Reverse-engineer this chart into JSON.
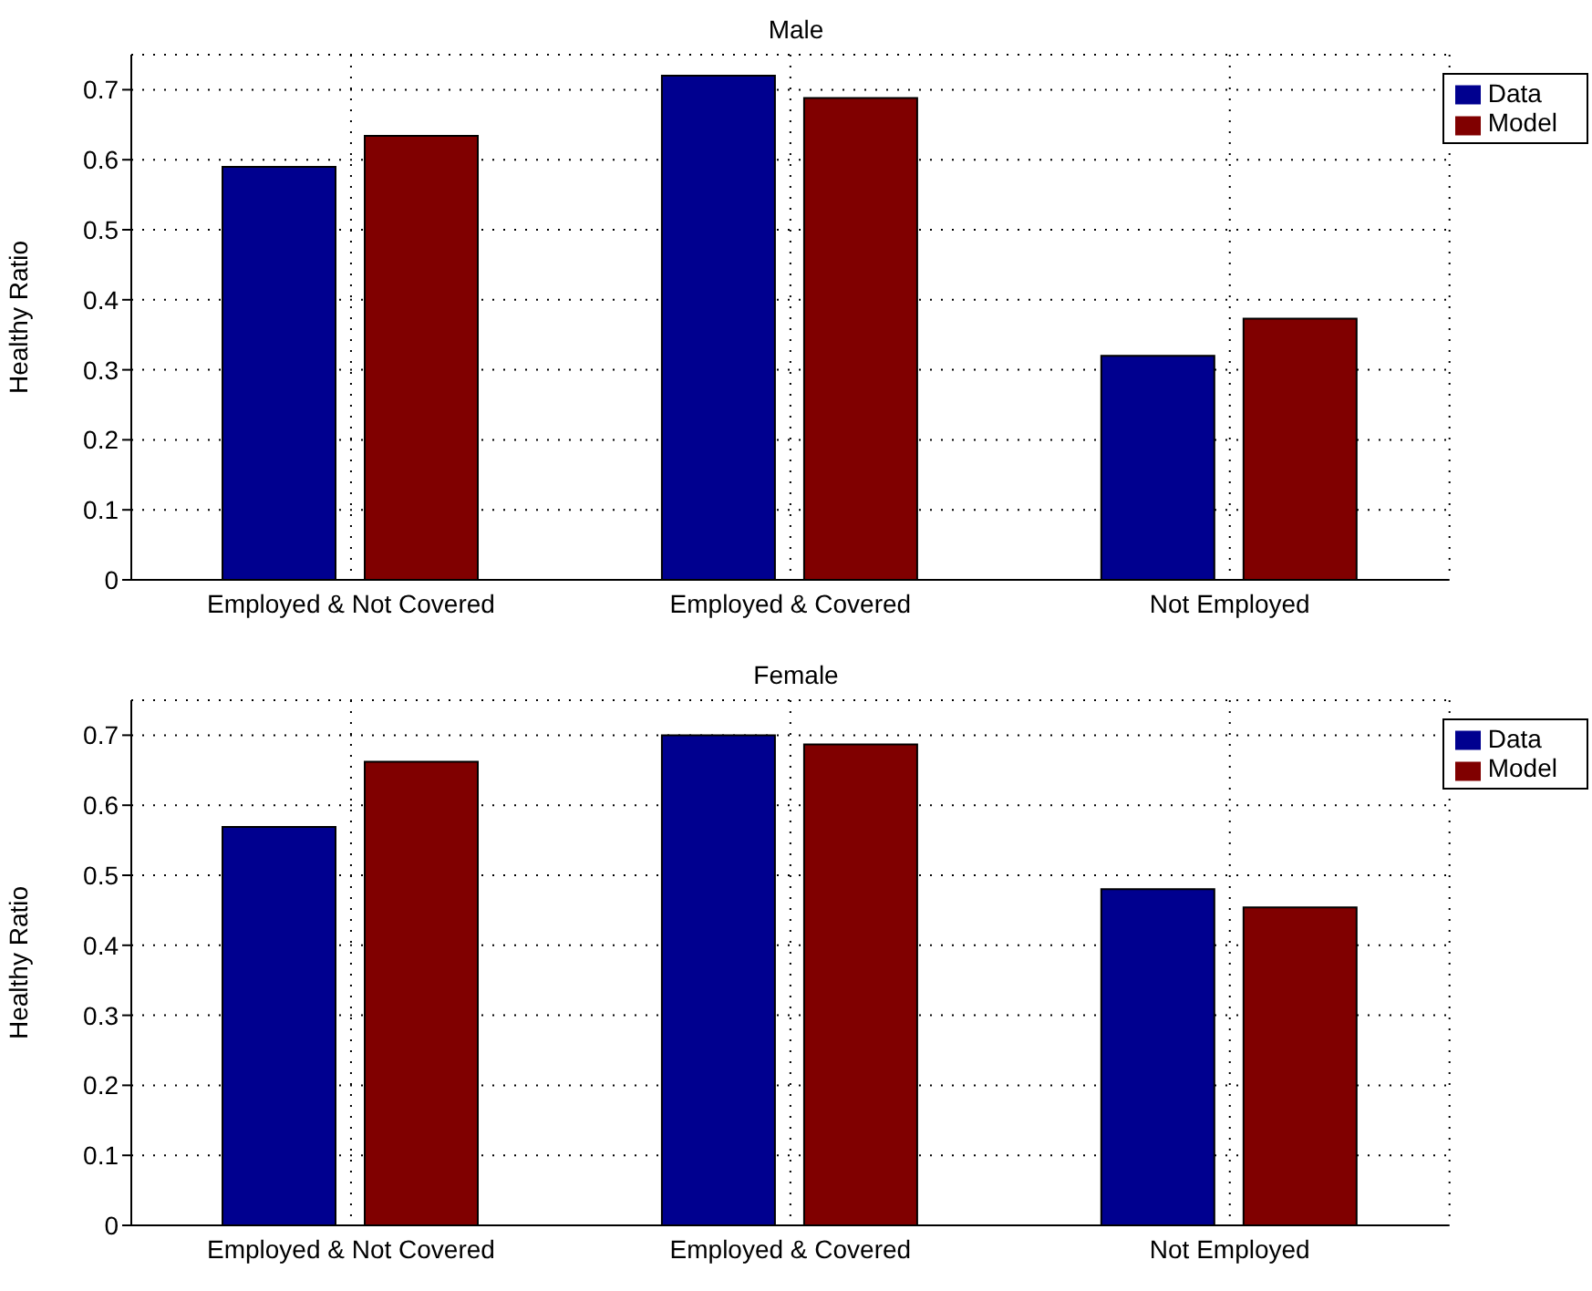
{
  "chart_data": [
    {
      "type": "bar",
      "title": "Male",
      "ylabel": "Healthy Ratio",
      "categories": [
        "Employed & Not Covered",
        "Employed & Covered",
        "Not Employed"
      ],
      "series": [
        {
          "name": "Data",
          "color": "#00008f",
          "values": [
            0.59,
            0.72,
            0.32
          ]
        },
        {
          "name": "Model",
          "color": "#800000",
          "values": [
            0.634,
            0.688,
            0.373
          ]
        }
      ],
      "ylim": [
        0,
        0.75
      ],
      "yticks": [
        0,
        0.1,
        0.2,
        0.3,
        0.4,
        0.5,
        0.6,
        0.7
      ],
      "grid": true,
      "legend": "top right"
    },
    {
      "type": "bar",
      "title": "Female",
      "ylabel": "Healthy Ratio",
      "categories": [
        "Employed & Not Covered",
        "Employed & Covered",
        "Not Employed"
      ],
      "series": [
        {
          "name": "Data",
          "color": "#00008f",
          "values": [
            0.569,
            0.7,
            0.48
          ]
        },
        {
          "name": "Model",
          "color": "#800000",
          "values": [
            0.662,
            0.687,
            0.454
          ]
        }
      ],
      "ylim": [
        0,
        0.75
      ],
      "yticks": [
        0,
        0.1,
        0.2,
        0.3,
        0.4,
        0.5,
        0.6,
        0.7
      ],
      "grid": true,
      "legend": "top right"
    }
  ]
}
